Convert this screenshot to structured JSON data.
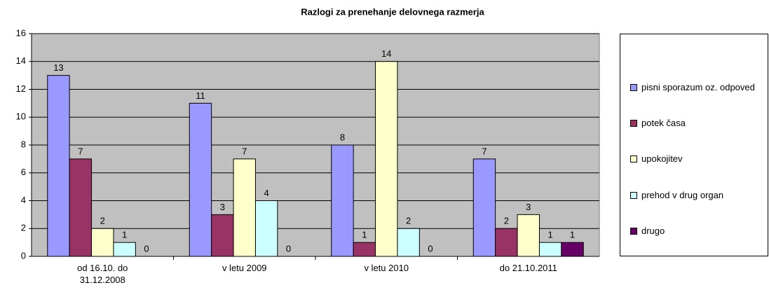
{
  "chart_data": {
    "type": "bar",
    "title": "Razlogi za prenehanje delovnega razmerja",
    "categories": [
      "od 16.10. do 31.12.2008",
      "v letu 2009",
      "v letu 2010",
      "do 21.10.2011"
    ],
    "series": [
      {
        "name": "pisni sporazum oz. odpoved",
        "color": "#9999ff",
        "values": [
          13,
          11,
          8,
          7
        ]
      },
      {
        "name": "potek časa",
        "color": "#993366",
        "values": [
          7,
          3,
          1,
          2
        ]
      },
      {
        "name": "upokojitev",
        "color": "#ffffcc",
        "values": [
          2,
          7,
          14,
          3
        ]
      },
      {
        "name": "prehod v drug organ",
        "color": "#ccffff",
        "values": [
          1,
          4,
          2,
          1
        ]
      },
      {
        "name": "drugo",
        "color": "#660066",
        "values": [
          0,
          0,
          0,
          1
        ]
      }
    ],
    "ylim": [
      0,
      16
    ],
    "yticks": [
      0,
      2,
      4,
      6,
      8,
      10,
      12,
      14,
      16
    ],
    "grid": true,
    "legend": "right"
  }
}
